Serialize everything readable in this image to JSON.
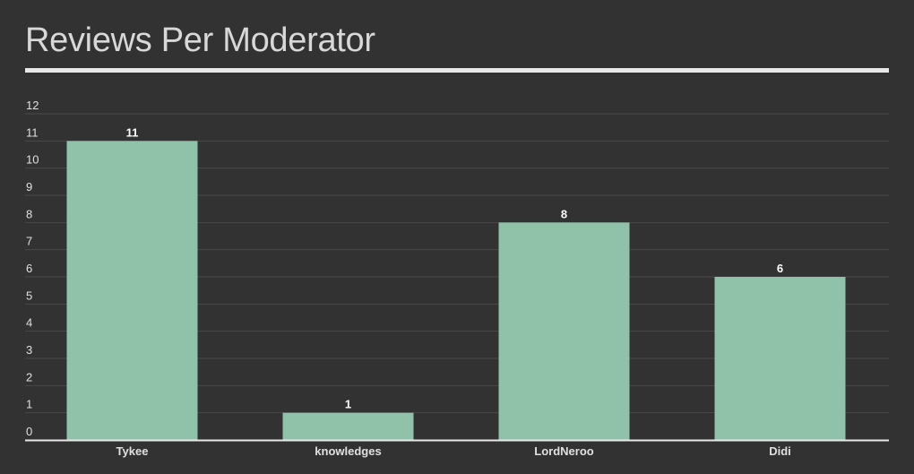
{
  "chart_data": {
    "type": "bar",
    "title": "Reviews Per Moderator",
    "categories": [
      "Tykee",
      "knowledges",
      "LordNeroo",
      "Didi"
    ],
    "values": [
      11,
      1,
      8,
      6
    ],
    "data_labels": [
      "11",
      "1",
      "8",
      "6"
    ],
    "ylim": [
      0,
      12
    ],
    "yticks": [
      "0",
      "1",
      "2",
      "3",
      "4",
      "5",
      "6",
      "7",
      "8",
      "9",
      "10",
      "11",
      "12"
    ],
    "grid": true,
    "bar_color": "#8fc2a8",
    "background_color": "#323232",
    "gridline_color": "#4a4a4a",
    "text_color": "#e0e0e0"
  }
}
